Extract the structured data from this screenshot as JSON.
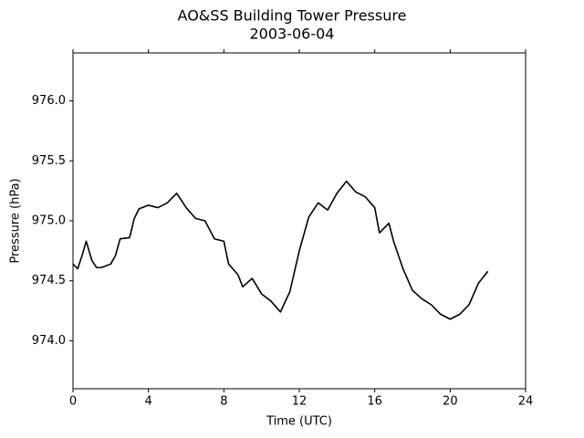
{
  "chart_data": {
    "type": "line",
    "title": "AO&SS Building Tower Pressure",
    "subtitle": "2003-06-04",
    "x_label": "Time (UTC)",
    "y_label": "Pressure (hPa)",
    "x": [
      0,
      0.25,
      0.5,
      0.7,
      1.0,
      1.25,
      1.5,
      2.0,
      2.25,
      2.5,
      3.0,
      3.25,
      3.5,
      4.0,
      4.5,
      5.0,
      5.5,
      5.75,
      6.0,
      6.5,
      7.0,
      7.5,
      8.0,
      8.25,
      8.75,
      9.0,
      9.5,
      10.0,
      10.5,
      11.0,
      11.5,
      12.0,
      12.5,
      13.0,
      13.5,
      14.0,
      14.5,
      15.0,
      15.5,
      16.0,
      16.25,
      16.75,
      17.0,
      17.5,
      18.0,
      18.5,
      19.0,
      19.5,
      20.0,
      20.5,
      21.0,
      21.5,
      22.0
    ],
    "series": [
      {
        "name": "Pressure",
        "color": "#000000",
        "values": [
          974.64,
          974.6,
          974.72,
          974.83,
          974.67,
          974.61,
          974.61,
          974.64,
          974.71,
          974.85,
          974.86,
          975.02,
          975.1,
          975.13,
          975.11,
          975.15,
          975.23,
          975.17,
          975.11,
          975.02,
          975.0,
          974.85,
          974.83,
          974.64,
          974.55,
          974.45,
          974.52,
          974.39,
          974.33,
          974.24,
          974.41,
          974.75,
          975.03,
          975.15,
          975.09,
          975.23,
          975.33,
          975.24,
          975.2,
          975.11,
          974.9,
          974.98,
          974.83,
          974.6,
          974.42,
          974.35,
          974.3,
          974.22,
          974.18,
          974.22,
          974.3,
          974.48,
          974.58
        ]
      }
    ],
    "xlim": [
      0,
      24
    ],
    "xticks": [
      0,
      4,
      8,
      12,
      16,
      20,
      24
    ],
    "ylim": [
      973.6,
      976.4
    ],
    "yticks": [
      {
        "value": 974,
        "label": "974.0"
      },
      974.5,
      {
        "value": 975,
        "label": "975.0"
      },
      975.5,
      {
        "value": 976,
        "label": "976.0"
      }
    ],
    "grid": false
  }
}
